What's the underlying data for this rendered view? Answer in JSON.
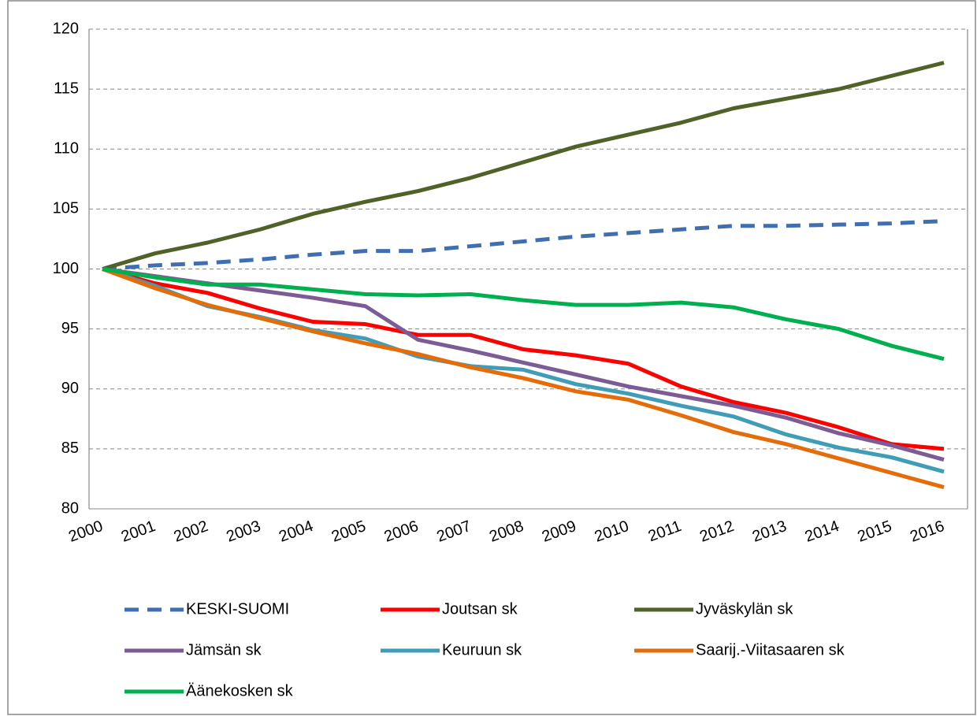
{
  "chart_data": {
    "type": "line",
    "categories": [
      "2000",
      "2001",
      "2002",
      "2003",
      "2004",
      "2005",
      "2006",
      "2007",
      "2008",
      "2009",
      "2010",
      "2011",
      "2012",
      "2013",
      "2014",
      "2015",
      "2016"
    ],
    "series": [
      {
        "name": "KESKI-SUOMI",
        "color": "#3f6fb0",
        "dashed": true,
        "values": [
          100,
          100.3,
          100.5,
          100.8,
          101.2,
          101.5,
          101.5,
          101.9,
          102.3,
          102.7,
          103.0,
          103.3,
          103.6,
          103.6,
          103.7,
          103.8,
          104.0
        ]
      },
      {
        "name": "Joutsan sk",
        "color": "#ff0000",
        "values": [
          100,
          98.8,
          98.0,
          96.7,
          95.6,
          95.4,
          94.5,
          94.5,
          93.3,
          92.8,
          92.1,
          90.2,
          88.9,
          88.0,
          86.8,
          85.4,
          85.0
        ]
      },
      {
        "name": "Jyväskylän sk",
        "color": "#4f6228",
        "values": [
          100,
          101.3,
          102.2,
          103.3,
          104.6,
          105.6,
          106.5,
          107.6,
          108.9,
          110.2,
          111.2,
          112.2,
          113.4,
          114.2,
          115.0,
          116.1,
          117.2
        ]
      },
      {
        "name": "Jämsän sk",
        "color": "#7b5c94",
        "values": [
          100,
          99.4,
          98.8,
          98.2,
          97.6,
          96.9,
          94.1,
          93.2,
          92.2,
          91.2,
          90.2,
          89.4,
          88.6,
          87.6,
          86.3,
          85.3,
          84.1
        ]
      },
      {
        "name": "Keuruun sk",
        "color": "#3f9db8",
        "values": [
          100,
          98.6,
          96.9,
          96.0,
          94.9,
          94.2,
          92.7,
          91.9,
          91.6,
          90.4,
          89.6,
          88.6,
          87.7,
          86.2,
          85.1,
          84.3,
          83.1
        ]
      },
      {
        "name": "Saarij.-Viitasaaren sk",
        "color": "#e46c0a",
        "values": [
          100,
          98.4,
          97.0,
          95.9,
          94.8,
          93.8,
          92.9,
          91.8,
          90.9,
          89.8,
          89.1,
          87.8,
          86.4,
          85.4,
          84.2,
          83.0,
          81.8
        ]
      },
      {
        "name": "Äänekosken sk",
        "color": "#00b050",
        "values": [
          100,
          99.3,
          98.7,
          98.7,
          98.3,
          97.9,
          97.8,
          97.9,
          97.4,
          97.0,
          97.0,
          97.2,
          96.8,
          95.8,
          95.0,
          93.6,
          92.5
        ]
      }
    ],
    "ylim": [
      80,
      120
    ],
    "yticks": [
      80,
      85,
      90,
      95,
      100,
      105,
      110,
      115,
      120
    ],
    "grid": true,
    "legend": "bottom"
  }
}
